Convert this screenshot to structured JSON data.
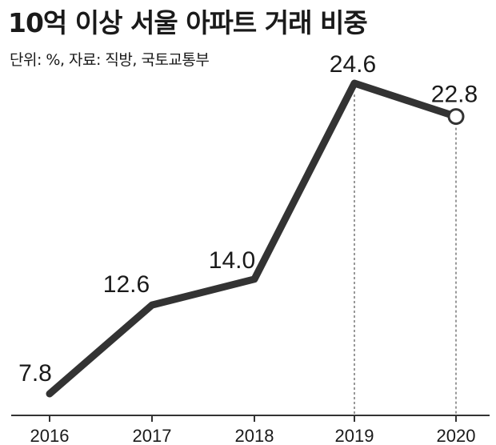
{
  "chart_data": {
    "type": "line",
    "title": "10억 이상 서울 아파트 거래 비중",
    "subtitle": "단위: %, 자료: 직방, 국토교통부",
    "categories": [
      "2016",
      "2017",
      "2018",
      "2019",
      "2020"
    ],
    "series": [
      {
        "values": [
          7.8,
          12.6,
          14.0,
          24.6,
          22.8
        ],
        "labels": [
          "7.8",
          "12.6",
          "14.0",
          "24.6",
          "22.8"
        ]
      }
    ],
    "hollow_last_point": true,
    "reference_lines_at": [
      "2019",
      "2020"
    ],
    "grid": false,
    "legend": "none",
    "colors": {
      "line": "#333333",
      "baseline": "#333333",
      "reference": "#555555",
      "marker_fill": "#ffffff"
    }
  }
}
